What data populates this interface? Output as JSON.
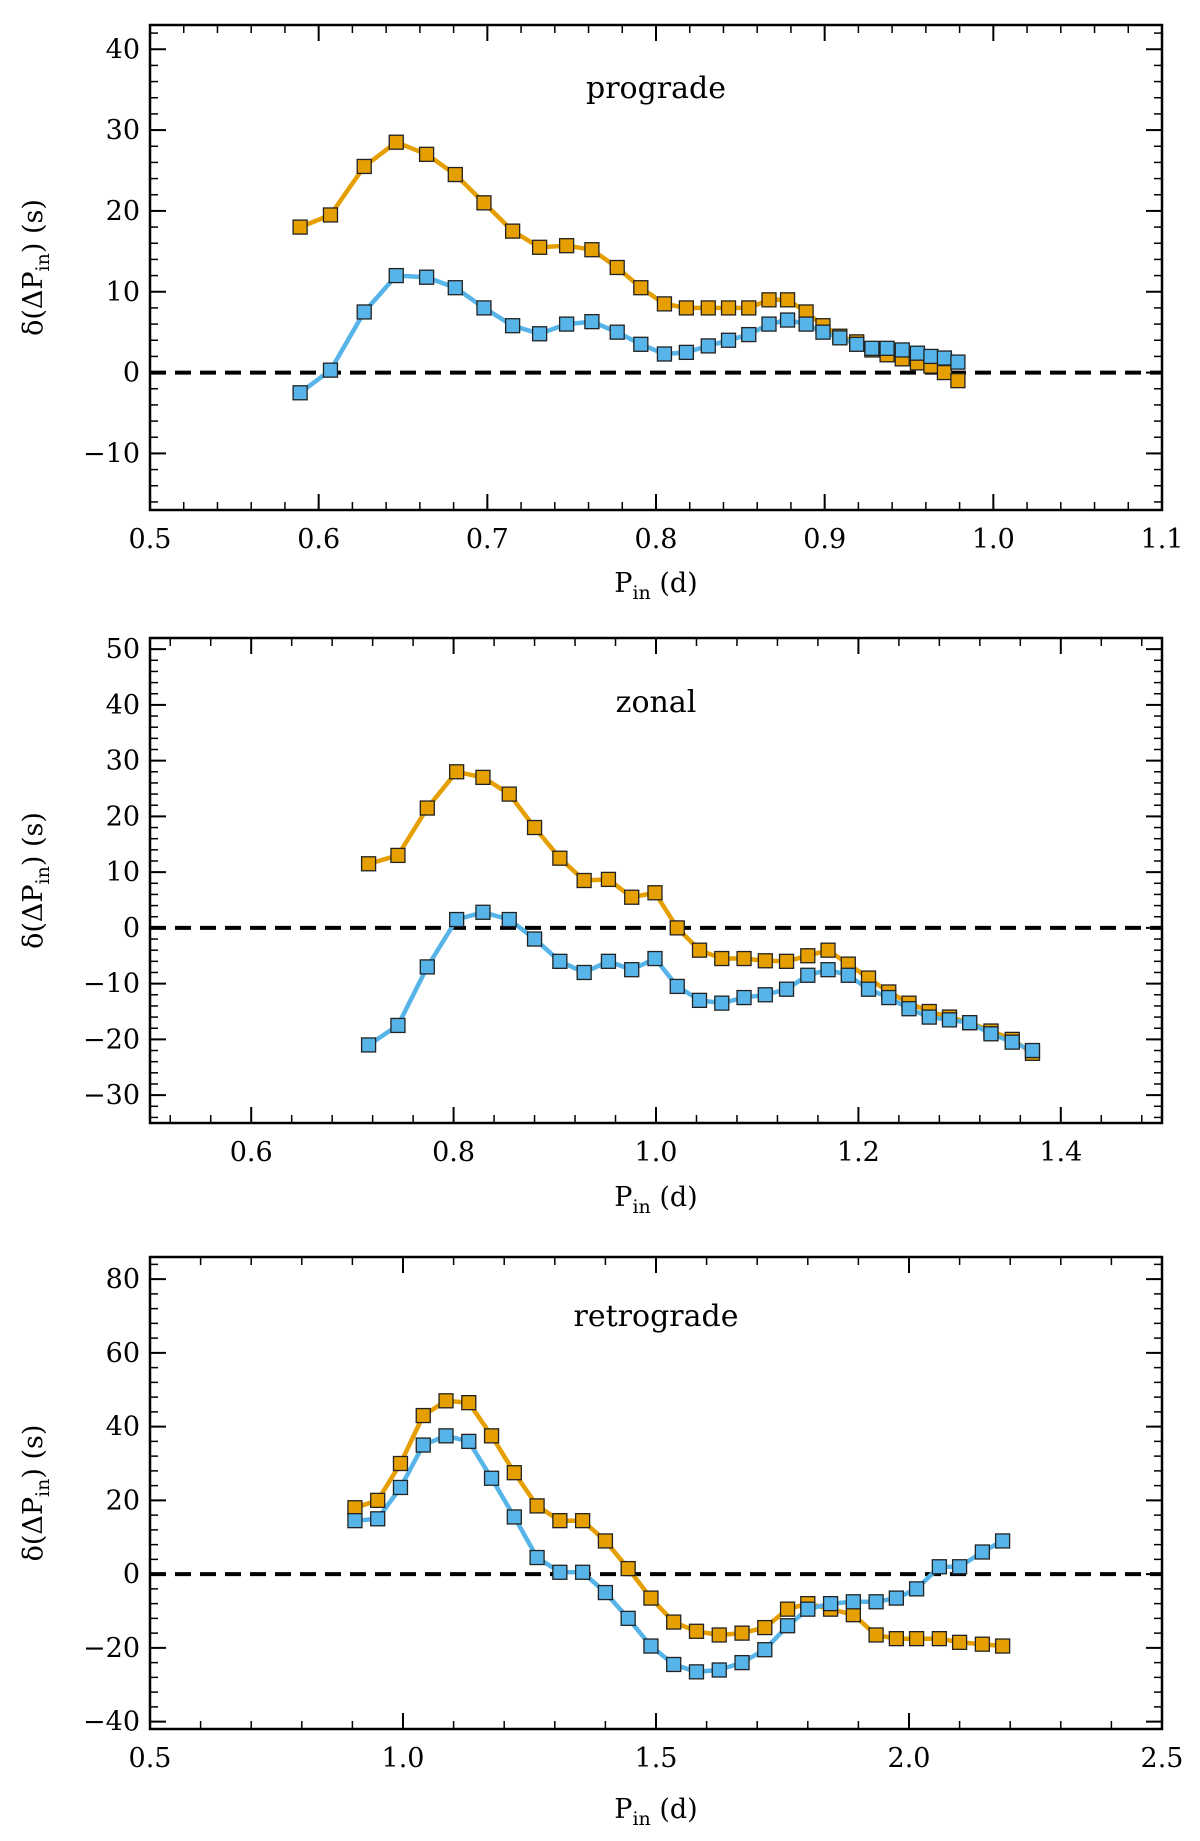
{
  "colors": {
    "orange": "#e69f00",
    "blue": "#56b4e9",
    "marker_edge": "#222222",
    "zero_line": "#000000"
  },
  "axis_labels": {
    "x_main": "P",
    "x_sub": "in",
    "x_tail": " (d)",
    "y_pre": "δ(ΔP",
    "y_sub": "in",
    "y_tail": ") (s)"
  },
  "chart_data": [
    {
      "type": "line",
      "title": "prograde",
      "xlabel": "P_in (d)",
      "ylabel": "δ(ΔP_in) (s)",
      "xlim": [
        0.5,
        1.1
      ],
      "ylim": [
        -17,
        43
      ],
      "xticks": [
        0.5,
        0.6,
        0.7,
        0.8,
        0.9,
        1.0,
        1.1
      ],
      "xtick_labels": [
        "0.5",
        "0.6",
        "0.7",
        "0.8",
        "0.9",
        "1.0",
        "1.1"
      ],
      "yticks": [
        -10,
        0,
        10,
        20,
        30,
        40
      ],
      "ytick_labels": [
        "−10",
        "0",
        "10",
        "20",
        "30",
        "40"
      ],
      "series": [
        {
          "name": "orange",
          "color": "#e69f00",
          "x": [
            0.589,
            0.607,
            0.627,
            0.646,
            0.664,
            0.681,
            0.698,
            0.715,
            0.731,
            0.747,
            0.762,
            0.777,
            0.791,
            0.805,
            0.818,
            0.831,
            0.843,
            0.855,
            0.867,
            0.878,
            0.889,
            0.899,
            0.909,
            0.919,
            0.928,
            0.937,
            0.946,
            0.955,
            0.963,
            0.971,
            0.979
          ],
          "y": [
            18,
            19.5,
            25.5,
            28.5,
            27,
            24.5,
            21,
            17.5,
            15.5,
            15.7,
            15.2,
            13,
            10.5,
            8.5,
            8,
            8,
            8,
            8,
            9,
            9,
            7.5,
            5.8,
            4.5,
            3.8,
            2.8,
            2.2,
            1.7,
            1.2,
            0.8,
            0,
            -1
          ]
        },
        {
          "name": "blue",
          "color": "#56b4e9",
          "x": [
            0.589,
            0.607,
            0.627,
            0.646,
            0.664,
            0.681,
            0.698,
            0.715,
            0.731,
            0.747,
            0.762,
            0.777,
            0.791,
            0.805,
            0.818,
            0.831,
            0.843,
            0.855,
            0.867,
            0.878,
            0.889,
            0.899,
            0.909,
            0.919,
            0.928,
            0.937,
            0.946,
            0.955,
            0.963,
            0.971,
            0.979
          ],
          "y": [
            -2.5,
            0.3,
            7.5,
            12,
            11.8,
            10.5,
            8,
            5.8,
            4.8,
            6,
            6.3,
            5,
            3.5,
            2.3,
            2.5,
            3.3,
            4,
            4.7,
            6,
            6.5,
            6,
            5,
            4.3,
            3.5,
            3,
            3,
            2.8,
            2.4,
            2,
            1.8,
            1.3
          ]
        }
      ]
    },
    {
      "type": "line",
      "title": "zonal",
      "xlabel": "P_in (d)",
      "ylabel": "δ(ΔP_in) (s)",
      "xlim": [
        0.5,
        1.5
      ],
      "ylim": [
        -35,
        52
      ],
      "xticks": [
        0.6,
        0.8,
        1.0,
        1.2,
        1.4
      ],
      "xtick_labels": [
        "0.6",
        "0.8",
        "1.0",
        "1.2",
        "1.4"
      ],
      "yticks": [
        -30,
        -20,
        -10,
        0,
        10,
        20,
        30,
        40,
        50
      ],
      "ytick_labels": [
        "−30",
        "−20",
        "−10",
        "0",
        "10",
        "20",
        "30",
        "40",
        "50"
      ],
      "series": [
        {
          "name": "orange",
          "color": "#e69f00",
          "x": [
            0.716,
            0.745,
            0.774,
            0.803,
            0.829,
            0.855,
            0.88,
            0.905,
            0.929,
            0.953,
            0.976,
            0.999,
            1.021,
            1.043,
            1.065,
            1.087,
            1.108,
            1.129,
            1.15,
            1.17,
            1.19,
            1.21,
            1.23,
            1.25,
            1.27,
            1.29,
            1.31,
            1.331,
            1.352,
            1.372
          ],
          "y": [
            11.5,
            13,
            21.5,
            28,
            27,
            24,
            18,
            12.5,
            8.5,
            8.7,
            5.5,
            6.3,
            0,
            -4,
            -5.5,
            -5.5,
            -5.9,
            -6,
            -5,
            -4,
            -6.5,
            -9,
            -11.5,
            -13.5,
            -15,
            -16,
            -17,
            -18.5,
            -20,
            -22.5
          ]
        },
        {
          "name": "blue",
          "color": "#56b4e9",
          "x": [
            0.716,
            0.745,
            0.774,
            0.803,
            0.829,
            0.855,
            0.88,
            0.905,
            0.929,
            0.953,
            0.976,
            0.999,
            1.021,
            1.043,
            1.065,
            1.087,
            1.108,
            1.129,
            1.15,
            1.17,
            1.19,
            1.21,
            1.23,
            1.25,
            1.27,
            1.29,
            1.31,
            1.331,
            1.352,
            1.372
          ],
          "y": [
            -21,
            -17.5,
            -7,
            1.5,
            2.8,
            1.5,
            -2,
            -6,
            -8,
            -6,
            -7.5,
            -5.5,
            -10.5,
            -13,
            -13.5,
            -12.5,
            -12,
            -11,
            -8.5,
            -7.5,
            -8.5,
            -11,
            -12.5,
            -14.5,
            -16,
            -16.5,
            -17,
            -19,
            -20.5,
            -22
          ]
        }
      ]
    },
    {
      "type": "line",
      "title": "retrograde",
      "xlabel": "P_in (d)",
      "ylabel": "δ(ΔP_in) (s)",
      "xlim": [
        0.5,
        2.5
      ],
      "ylim": [
        -42,
        86
      ],
      "xticks": [
        0.5,
        1.0,
        1.5,
        2.0,
        2.5
      ],
      "xtick_labels": [
        "0.5",
        "1.0",
        "1.5",
        "2.0",
        "2.5"
      ],
      "yticks": [
        -40,
        -20,
        0,
        20,
        40,
        60,
        80
      ],
      "ytick_labels": [
        "−40",
        "−20",
        "0",
        "20",
        "40",
        "60",
        "80"
      ],
      "series": [
        {
          "name": "orange",
          "color": "#e69f00",
          "x": [
            0.905,
            0.95,
            0.995,
            1.04,
            1.085,
            1.13,
            1.175,
            1.22,
            1.265,
            1.31,
            1.355,
            1.4,
            1.445,
            1.49,
            1.535,
            1.58,
            1.625,
            1.67,
            1.715,
            1.76,
            1.8,
            1.845,
            1.89,
            1.935,
            1.975,
            2.015,
            2.06,
            2.1,
            2.145,
            2.185
          ],
          "y": [
            18,
            20,
            30,
            43,
            47,
            46.5,
            37.5,
            27.5,
            18.5,
            14.5,
            14.5,
            9,
            1.5,
            -6.5,
            -13,
            -15.5,
            -16.5,
            -16,
            -14.5,
            -9.5,
            -8,
            -9.5,
            -11,
            -16.5,
            -17.5,
            -17.5,
            -17.5,
            -18.5,
            -19,
            -19.5
          ]
        },
        {
          "name": "blue",
          "color": "#56b4e9",
          "x": [
            0.905,
            0.95,
            0.995,
            1.04,
            1.085,
            1.13,
            1.175,
            1.22,
            1.265,
            1.31,
            1.355,
            1.4,
            1.445,
            1.49,
            1.535,
            1.58,
            1.625,
            1.67,
            1.715,
            1.76,
            1.8,
            1.845,
            1.89,
            1.935,
            1.975,
            2.015,
            2.06,
            2.1,
            2.145,
            2.185
          ],
          "y": [
            14.5,
            15,
            23.5,
            35,
            37.5,
            36,
            26,
            15.5,
            4.5,
            0.5,
            0.5,
            -5,
            -12,
            -19.5,
            -24.5,
            -26.5,
            -26,
            -24,
            -20.5,
            -14,
            -9.5,
            -8,
            -7.5,
            -7.5,
            -6.5,
            -4,
            2,
            2,
            6,
            9
          ]
        }
      ]
    }
  ]
}
